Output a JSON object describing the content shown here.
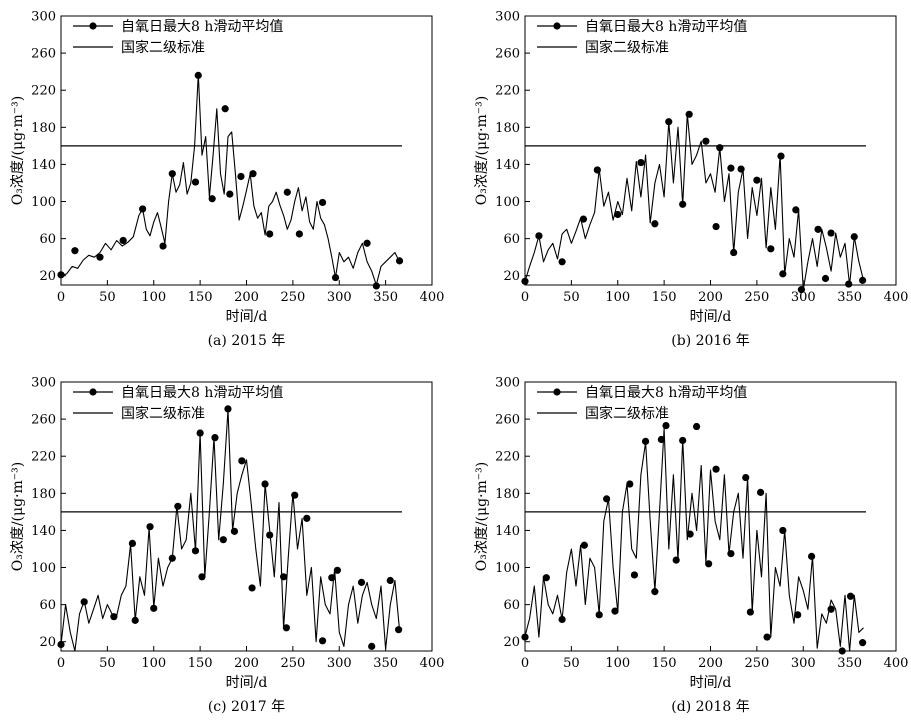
{
  "chart_data": [
    {
      "type": "line",
      "caption": "(a)  2015 年",
      "xlabel": "时间/d",
      "ylabel": "O₃浓度/(μg·m⁻³)",
      "xlim": [
        0,
        400
      ],
      "ylim": [
        10,
        300
      ],
      "xticks": [
        0,
        50,
        100,
        150,
        200,
        250,
        300,
        350,
        400
      ],
      "yticks": [
        20,
        60,
        100,
        140,
        180,
        220,
        260,
        300
      ],
      "standard": 160,
      "legend": [
        "自氧日最大8 h滑动平均值",
        "国家二级标准"
      ],
      "x": [
        0,
        6,
        12,
        18,
        24,
        30,
        36,
        42,
        48,
        54,
        60,
        66,
        72,
        78,
        84,
        88,
        92,
        96,
        100,
        104,
        108,
        112,
        116,
        120,
        124,
        128,
        132,
        136,
        140,
        144,
        148,
        152,
        156,
        160,
        164,
        168,
        172,
        176,
        180,
        184,
        188,
        192,
        196,
        200,
        204,
        208,
        212,
        216,
        220,
        224,
        228,
        232,
        236,
        240,
        244,
        248,
        252,
        256,
        260,
        264,
        268,
        272,
        276,
        280,
        284,
        288,
        292,
        296,
        300,
        305,
        310,
        315,
        320,
        325,
        330,
        335,
        340,
        345,
        350,
        355,
        360,
        365
      ],
      "y": [
        20,
        22,
        30,
        28,
        37,
        42,
        40,
        45,
        55,
        48,
        58,
        52,
        56,
        62,
        85,
        92,
        70,
        63,
        78,
        88,
        72,
        55,
        100,
        130,
        110,
        118,
        142,
        108,
        120,
        160,
        237,
        150,
        170,
        105,
        150,
        200,
        130,
        108,
        170,
        175,
        130,
        80,
        95,
        112,
        130,
        95,
        82,
        88,
        64,
        95,
        100,
        110,
        96,
        85,
        70,
        80,
        100,
        115,
        90,
        105,
        78,
        70,
        100,
        82,
        75,
        60,
        40,
        18,
        45,
        35,
        40,
        28,
        45,
        55,
        35,
        25,
        10,
        30,
        35,
        40,
        45,
        35
      ],
      "marker_x": [
        0,
        15,
        42,
        67,
        88,
        110,
        120,
        145,
        148,
        163,
        177,
        182,
        194,
        207,
        225,
        244,
        257,
        282,
        296,
        330,
        340,
        365
      ],
      "marker_y": [
        21,
        47,
        40,
        58,
        92,
        52,
        130,
        121,
        236,
        103,
        200,
        108,
        127,
        130,
        65,
        110,
        65,
        99,
        18,
        55,
        9,
        36
      ]
    },
    {
      "type": "line",
      "caption": "(b)  2016 年",
      "xlabel": "时间/d",
      "ylabel": "O₃浓度/(μg·m⁻³)",
      "xlim": [
        0,
        400
      ],
      "ylim": [
        10,
        300
      ],
      "xticks": [
        0,
        50,
        100,
        150,
        200,
        250,
        300,
        350,
        400
      ],
      "yticks": [
        20,
        60,
        100,
        140,
        180,
        220,
        260,
        300
      ],
      "standard": 160,
      "legend": [
        "自氧日最大8 h滑动平均值",
        "国家二级标准"
      ],
      "x": [
        0,
        5,
        10,
        15,
        20,
        25,
        30,
        35,
        40,
        45,
        50,
        55,
        60,
        65,
        70,
        75,
        80,
        85,
        90,
        95,
        100,
        105,
        110,
        115,
        120,
        125,
        130,
        135,
        140,
        145,
        150,
        155,
        160,
        165,
        170,
        175,
        180,
        185,
        190,
        195,
        200,
        205,
        210,
        215,
        220,
        225,
        230,
        235,
        240,
        245,
        250,
        255,
        260,
        265,
        270,
        275,
        280,
        285,
        290,
        295,
        300,
        305,
        310,
        315,
        320,
        325,
        330,
        335,
        340,
        345,
        350,
        355,
        360,
        365
      ],
      "y": [
        14,
        30,
        45,
        63,
        35,
        48,
        55,
        38,
        65,
        70,
        55,
        68,
        82,
        60,
        75,
        88,
        135,
        95,
        110,
        80,
        100,
        86,
        125,
        90,
        143,
        105,
        150,
        77,
        120,
        140,
        105,
        186,
        120,
        180,
        97,
        194,
        140,
        150,
        165,
        120,
        130,
        110,
        158,
        100,
        130,
        45,
        110,
        135,
        60,
        115,
        85,
        125,
        50,
        115,
        70,
        150,
        22,
        60,
        40,
        91,
        5,
        35,
        60,
        30,
        70,
        50,
        25,
        66,
        40,
        55,
        10,
        62,
        35,
        15
      ],
      "marker_x": [
        0,
        15,
        40,
        63,
        78,
        100,
        125,
        140,
        155,
        170,
        177,
        195,
        206,
        210,
        222,
        225,
        233,
        250,
        265,
        276,
        278,
        292,
        298,
        316,
        324,
        330,
        349,
        355,
        364
      ],
      "marker_y": [
        14,
        63,
        35,
        81,
        134,
        86,
        142,
        76,
        186,
        97,
        194,
        165,
        73,
        158,
        136,
        45,
        135,
        123,
        49,
        149,
        22,
        91,
        5,
        70,
        17,
        66,
        11,
        62,
        15
      ]
    },
    {
      "type": "line",
      "caption": "(c)  2017 年",
      "xlabel": "时间/d",
      "ylabel": "O₃浓度/(μg·m⁻³)",
      "xlim": [
        0,
        400
      ],
      "ylim": [
        10,
        300
      ],
      "xticks": [
        0,
        50,
        100,
        150,
        200,
        250,
        300,
        350,
        400
      ],
      "yticks": [
        20,
        60,
        100,
        140,
        180,
        220,
        260,
        300
      ],
      "standard": 160,
      "legend": [
        "自氧日最大8 h滑动平均值",
        "国家二级标准"
      ],
      "x": [
        0,
        5,
        10,
        15,
        20,
        25,
        30,
        35,
        40,
        45,
        50,
        55,
        60,
        65,
        70,
        75,
        80,
        85,
        90,
        95,
        100,
        105,
        110,
        115,
        120,
        125,
        130,
        135,
        140,
        145,
        150,
        155,
        160,
        165,
        170,
        175,
        180,
        185,
        190,
        195,
        200,
        205,
        210,
        215,
        220,
        225,
        230,
        235,
        240,
        245,
        250,
        255,
        260,
        265,
        270,
        275,
        280,
        285,
        290,
        295,
        300,
        305,
        310,
        315,
        320,
        325,
        330,
        335,
        340,
        345,
        350,
        355,
        360,
        365
      ],
      "y": [
        17,
        60,
        30,
        10,
        50,
        64,
        40,
        55,
        70,
        45,
        60,
        50,
        48,
        70,
        80,
        125,
        43,
        90,
        70,
        143,
        57,
        110,
        80,
        100,
        110,
        166,
        120,
        130,
        180,
        118,
        245,
        90,
        160,
        240,
        130,
        190,
        270,
        140,
        180,
        200,
        216,
        170,
        120,
        80,
        190,
        140,
        90,
        170,
        35,
        110,
        180,
        120,
        153,
        70,
        100,
        20,
        90,
        60,
        50,
        98,
        30,
        15,
        60,
        80,
        40,
        70,
        84,
        60,
        45,
        80,
        12,
        60,
        86,
        33
      ],
      "marker_x": [
        0,
        25,
        57,
        77,
        80,
        96,
        100,
        120,
        126,
        145,
        150,
        152,
        166,
        175,
        180,
        187,
        195,
        206,
        220,
        225,
        240,
        243,
        252,
        265,
        282,
        292,
        298,
        324,
        335,
        355,
        364
      ],
      "marker_y": [
        17,
        63,
        47,
        126,
        43,
        144,
        56,
        110,
        166,
        118,
        245,
        90,
        240,
        130,
        271,
        139,
        215,
        78,
        190,
        135,
        90,
        35,
        178,
        153,
        21,
        89,
        97,
        84,
        15,
        86,
        33
      ]
    },
    {
      "type": "line",
      "caption": "(d)  2018 年",
      "xlabel": "时间/d",
      "ylabel": "O₃浓度/(μg·m⁻³)",
      "xlim": [
        0,
        400
      ],
      "ylim": [
        10,
        300
      ],
      "xticks": [
        0,
        50,
        100,
        150,
        200,
        250,
        300,
        350,
        400
      ],
      "yticks": [
        20,
        60,
        100,
        140,
        180,
        220,
        260,
        300
      ],
      "standard": 160,
      "legend": [
        "自氧日最大8 h滑动平均值",
        "国家二级标准"
      ],
      "x": [
        0,
        5,
        10,
        15,
        20,
        25,
        30,
        35,
        40,
        45,
        50,
        55,
        60,
        65,
        70,
        75,
        80,
        85,
        90,
        95,
        100,
        105,
        110,
        115,
        120,
        125,
        130,
        135,
        140,
        145,
        150,
        155,
        160,
        165,
        170,
        175,
        180,
        185,
        190,
        195,
        200,
        205,
        210,
        215,
        220,
        225,
        230,
        235,
        240,
        245,
        250,
        255,
        260,
        265,
        270,
        275,
        280,
        285,
        290,
        295,
        300,
        305,
        310,
        315,
        320,
        325,
        330,
        335,
        340,
        345,
        350,
        355,
        360,
        365
      ],
      "y": [
        26,
        45,
        80,
        25,
        90,
        60,
        50,
        70,
        44,
        95,
        120,
        80,
        124,
        60,
        110,
        100,
        50,
        150,
        174,
        100,
        52,
        160,
        190,
        120,
        110,
        200,
        235,
        150,
        75,
        160,
        250,
        120,
        200,
        108,
        238,
        130,
        180,
        140,
        210,
        105,
        205,
        150,
        130,
        200,
        115,
        160,
        180,
        110,
        197,
        52,
        140,
        90,
        180,
        25,
        100,
        80,
        140,
        70,
        40,
        90,
        75,
        55,
        112,
        13,
        50,
        40,
        65,
        55,
        15,
        70,
        10,
        70,
        30,
        35
      ],
      "marker_x": [
        0,
        23,
        40,
        64,
        80,
        88,
        97,
        113,
        118,
        130,
        140,
        147,
        152,
        163,
        170,
        178,
        185,
        198,
        206,
        222,
        238,
        243,
        254,
        261,
        278,
        294,
        309,
        330,
        342,
        351,
        364
      ],
      "marker_y": [
        25,
        89,
        44,
        124,
        49,
        174,
        53,
        190,
        92,
        236,
        74,
        238,
        253,
        108,
        237,
        136,
        252,
        104,
        206,
        115,
        197,
        52,
        181,
        25,
        140,
        49,
        112,
        55,
        10,
        69,
        19
      ]
    }
  ]
}
